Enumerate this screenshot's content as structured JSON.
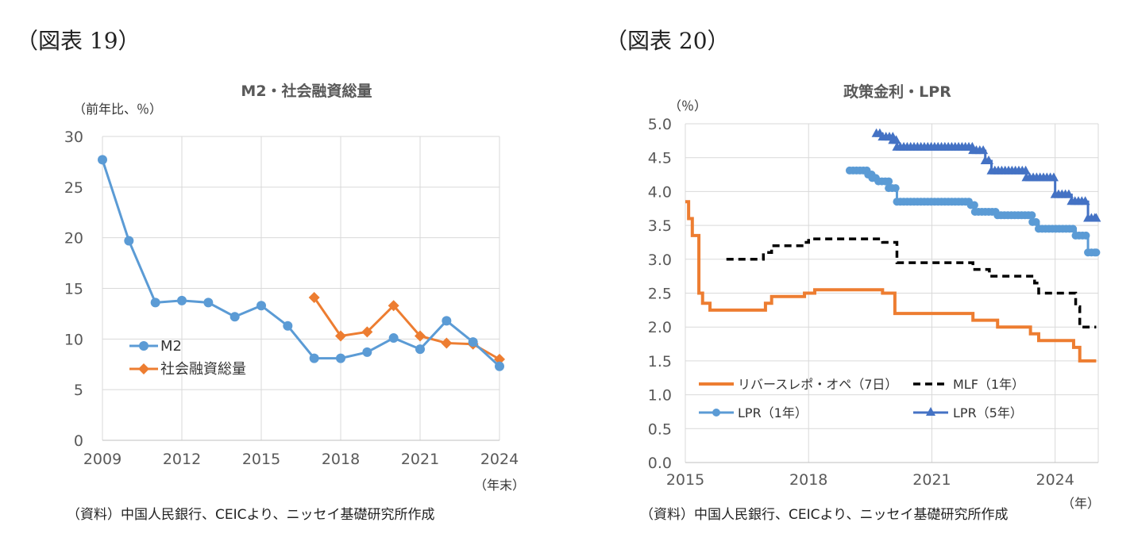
{
  "panel_labels": [
    "（図表 19）",
    "（図表 20）"
  ],
  "sources": [
    "（資料）中国人民銀行、CEICより、ニッセイ基礎研究所作成",
    "（資料）中国人民銀行、CEICより、ニッセイ基礎研究所作成"
  ],
  "colors": {
    "m2": "#5b9bd5",
    "tsf": "#ed7d31",
    "rrp": "#ed7d31",
    "mlf": "#000000",
    "lpr1": "#5b9bd5",
    "lpr5": "#4472c4",
    "grid": "#d9d9d9"
  },
  "chart_data": [
    {
      "type": "line",
      "title": "M2・社会融資総量",
      "ylabel": "（前年比、％）",
      "xlabel": "（年末）",
      "x": [
        2009,
        2010,
        2011,
        2012,
        2013,
        2014,
        2015,
        2016,
        2017,
        2018,
        2019,
        2020,
        2021,
        2022,
        2023,
        2024
      ],
      "xlim": [
        2009,
        2024
      ],
      "ylim": [
        0,
        30
      ],
      "xticks": [
        2009,
        2012,
        2015,
        2018,
        2021,
        2024
      ],
      "yticks": [
        0,
        5,
        10,
        15,
        20,
        25,
        30
      ],
      "legend_position": "left-middle",
      "series": [
        {
          "name": "M2",
          "marker": "circle",
          "values": [
            27.7,
            19.7,
            13.6,
            13.8,
            13.6,
            12.2,
            13.3,
            11.3,
            8.1,
            8.1,
            8.7,
            10.1,
            9.0,
            11.8,
            9.7,
            7.3
          ]
        },
        {
          "name": "社会融資総量",
          "marker": "diamond",
          "values": [
            null,
            null,
            null,
            null,
            null,
            null,
            null,
            null,
            14.1,
            10.3,
            10.7,
            13.3,
            10.3,
            9.6,
            9.5,
            8.0
          ]
        }
      ]
    },
    {
      "type": "line",
      "title": "政策金利・LPR",
      "ylabel": "（％）",
      "xlabel": "（年）",
      "xlim": [
        2015,
        2025.05
      ],
      "ylim": [
        0,
        5.0
      ],
      "xticks": [
        2015,
        2018,
        2021,
        2024
      ],
      "yticks": [
        "0.0",
        "0.5",
        "1.0",
        "1.5",
        "2.0",
        "2.5",
        "3.0",
        "3.5",
        "4.0",
        "4.5",
        "5.0"
      ],
      "legend_position": "bottom",
      "series": [
        {
          "name": "リバースレポ・オペ（7日）",
          "style": "solid",
          "steps": [
            [
              2015.0,
              3.85
            ],
            [
              2015.08,
              3.6
            ],
            [
              2015.17,
              3.35
            ],
            [
              2015.33,
              2.5
            ],
            [
              2015.42,
              2.35
            ],
            [
              2015.6,
              2.25
            ],
            [
              2016.95,
              2.35
            ],
            [
              2017.1,
              2.45
            ],
            [
              2017.9,
              2.5
            ],
            [
              2018.15,
              2.55
            ],
            [
              2019.8,
              2.5
            ],
            [
              2020.1,
              2.2
            ],
            [
              2022.0,
              2.1
            ],
            [
              2022.6,
              2.0
            ],
            [
              2023.4,
              1.9
            ],
            [
              2023.6,
              1.8
            ],
            [
              2024.45,
              1.7
            ],
            [
              2024.6,
              1.5
            ],
            [
              2025.0,
              1.5
            ]
          ]
        },
        {
          "name": "MLF（1年）",
          "style": "dashed",
          "steps": [
            [
              2016.0,
              3.0
            ],
            [
              2016.9,
              3.1
            ],
            [
              2017.1,
              3.2
            ],
            [
              2017.9,
              3.25
            ],
            [
              2018.0,
              3.3
            ],
            [
              2019.8,
              3.25
            ],
            [
              2020.15,
              2.95
            ],
            [
              2022.0,
              2.85
            ],
            [
              2022.4,
              2.75
            ],
            [
              2023.5,
              2.65
            ],
            [
              2023.6,
              2.5
            ],
            [
              2024.5,
              2.3
            ],
            [
              2024.6,
              2.0
            ],
            [
              2025.0,
              2.0
            ]
          ]
        },
        {
          "name": "LPR（1年）",
          "style": "circle",
          "steps": [
            [
              2019.0,
              4.31
            ],
            [
              2019.45,
              4.25
            ],
            [
              2019.55,
              4.2
            ],
            [
              2019.7,
              4.15
            ],
            [
              2019.95,
              4.05
            ],
            [
              2020.15,
              3.85
            ],
            [
              2021.95,
              3.8
            ],
            [
              2022.05,
              3.7
            ],
            [
              2022.6,
              3.65
            ],
            [
              2023.45,
              3.55
            ],
            [
              2023.6,
              3.45
            ],
            [
              2024.5,
              3.35
            ],
            [
              2024.8,
              3.1
            ],
            [
              2025.0,
              3.1
            ]
          ]
        },
        {
          "name": "LPR（5年）",
          "style": "triangle",
          "steps": [
            [
              2019.65,
              4.85
            ],
            [
              2019.8,
              4.8
            ],
            [
              2020.05,
              4.75
            ],
            [
              2020.15,
              4.65
            ],
            [
              2022.0,
              4.6
            ],
            [
              2022.3,
              4.45
            ],
            [
              2022.45,
              4.3
            ],
            [
              2023.3,
              4.2
            ],
            [
              2024.0,
              3.95
            ],
            [
              2024.4,
              3.85
            ],
            [
              2024.8,
              3.6
            ],
            [
              2025.0,
              3.6
            ]
          ]
        }
      ]
    }
  ]
}
